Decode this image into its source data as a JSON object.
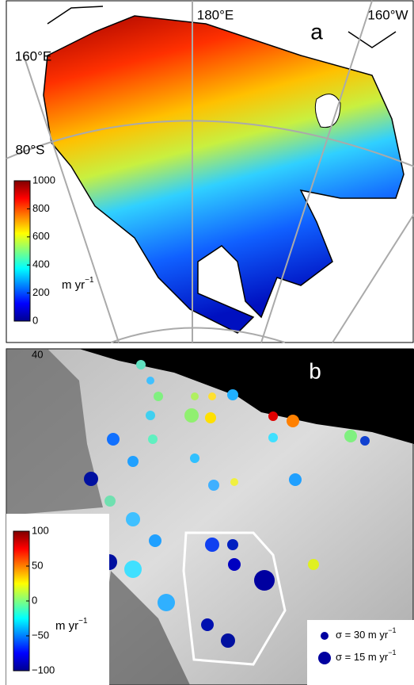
{
  "panels": [
    {
      "label": "a",
      "lon_labels": [
        "180°E",
        "160°W"
      ],
      "lat_labels": [
        "160°E",
        "80°S"
      ],
      "colorbar": {
        "ticks": [
          0,
          200,
          400,
          600,
          800,
          1000
        ],
        "unit": "m yr",
        "unit_exp": "−1"
      }
    },
    {
      "label": "b",
      "corner_label": "40",
      "colorbar": {
        "ticks": [
          {
            "value": -100,
            "label": "−100"
          },
          {
            "value": -50,
            "label": "−50"
          },
          0,
          50,
          100
        ],
        "unit": "m yr",
        "unit_exp": "−1"
      },
      "legend": [
        {
          "text": "σ = 30 m yr",
          "exp": "−1"
        },
        {
          "text": "σ = 15 m yr",
          "exp": "−1"
        }
      ]
    }
  ]
}
